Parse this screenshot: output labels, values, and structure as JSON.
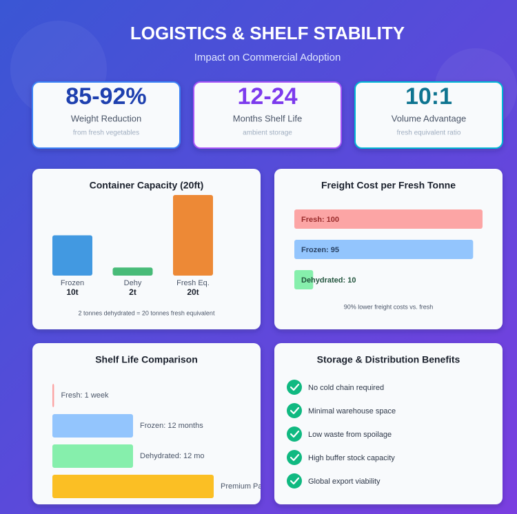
{
  "header": {
    "title": "LOGISTICS & SHELF STABILITY",
    "subtitle": "Impact on Commercial Adoption"
  },
  "stats": [
    {
      "value": "85-92%",
      "label": "Weight Reduction",
      "note": "from fresh vegetables",
      "color": "#1e40af",
      "border": "#3b82f6"
    },
    {
      "value": "12-24",
      "label": "Months Shelf Life",
      "note": "ambient storage",
      "color": "#7c3aed",
      "border": "#a855f7"
    },
    {
      "value": "10:1",
      "label": "Volume Advantage",
      "note": "fresh equivalent ratio",
      "color": "#0e7490",
      "border": "#06b6d4"
    }
  ],
  "chart_data": [
    {
      "type": "bar",
      "title": "Container Capacity (20ft)",
      "categories": [
        "Frozen",
        "Dehy",
        "Fresh Eq."
      ],
      "values": [
        10,
        2,
        20
      ],
      "value_labels": [
        "10t",
        "2t",
        "20t"
      ],
      "colors": [
        "#4299e1",
        "#48bb78",
        "#ed8936"
      ],
      "ylim": [
        0,
        20
      ],
      "note": "2 tonnes dehydrated = 20 tonnes fresh equivalent"
    },
    {
      "type": "hbar",
      "title": "Freight Cost per Fresh Tonne",
      "values": [
        100,
        95,
        10
      ],
      "value_labels": [
        "Fresh: 100",
        "Frozen: 95",
        "Dehydrated: 10"
      ],
      "colors": [
        "#fca5a5",
        "#93c5fd",
        "#86efac"
      ],
      "label_colors": [
        "#9b2c2c",
        "#2a4365",
        "#22543d"
      ],
      "label_position": "inside",
      "xlim": [
        0,
        100
      ],
      "note": "90% lower freight costs vs. fresh"
    },
    {
      "type": "hbar",
      "title": "Shelf Life Comparison",
      "values": [
        0.25,
        12,
        12,
        24
      ],
      "value_labels": [
        "Fresh: 1 week",
        "Frozen: 12 months",
        "Dehydrated: 12 mo",
        "Premium Pack"
      ],
      "colors": [
        "#fca5a5",
        "#93c5fd",
        "#86efac",
        "#fbbf24"
      ],
      "label_position": "outside",
      "xlim": [
        0,
        24
      ]
    }
  ],
  "benefits": {
    "title": "Storage & Distribution Benefits",
    "items": [
      "No cold chain required",
      "Minimal warehouse space",
      "Low waste from spoilage",
      "High buffer stock capacity",
      "Global export viability"
    ]
  }
}
